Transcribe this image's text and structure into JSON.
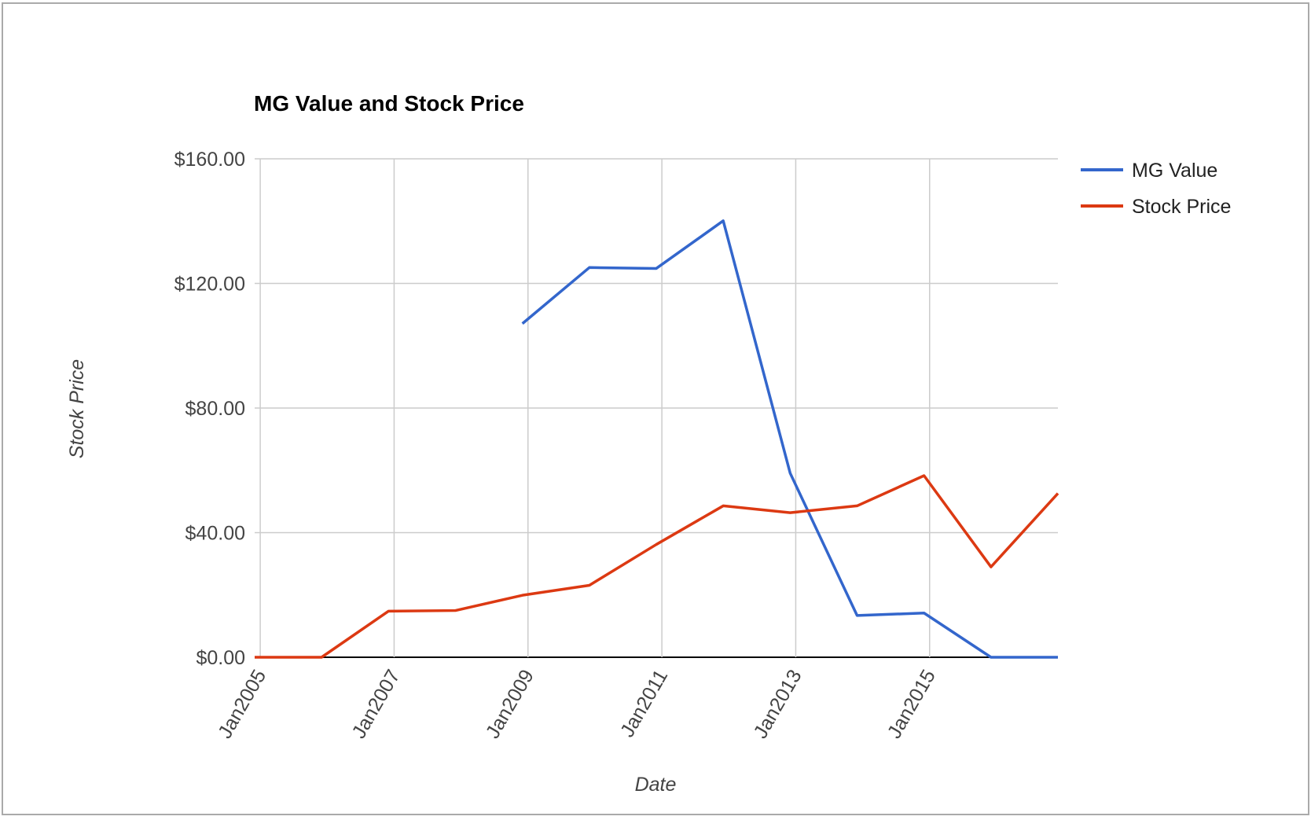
{
  "chart_data": {
    "type": "line",
    "title": "MG Value and Stock Price",
    "x_label": "Date",
    "y_label": "Stock Price",
    "x": [
      "2004-12",
      "2005-12",
      "2006-12",
      "2007-12",
      "2008-12",
      "2009-12",
      "2010-12",
      "2011-12",
      "2012-12",
      "2013-12",
      "2014-12",
      "2015-12",
      "2016-12"
    ],
    "series": [
      {
        "name": "MG Value",
        "color": "#3366cc",
        "values": [
          null,
          null,
          null,
          null,
          107.1,
          125.1,
          124.8,
          140.1,
          59.1,
          13.4,
          14.2,
          0,
          0
        ]
      },
      {
        "name": "Stock Price",
        "color": "#dc3912",
        "values": [
          0,
          0,
          14.8,
          15,
          19.9,
          23.1,
          36.2,
          48.6,
          46.4,
          48.6,
          58.3,
          29,
          52.6
        ]
      }
    ],
    "xlim": [
      "2004-12",
      "2016-12"
    ],
    "xticks": [
      {
        "value": "2005-01",
        "label": "Jan2005"
      },
      {
        "value": "2007-01",
        "label": "Jan2007"
      },
      {
        "value": "2009-01",
        "label": "Jan2009"
      },
      {
        "value": "2011-01",
        "label": "Jan2011"
      },
      {
        "value": "2013-01",
        "label": "Jan2013"
      },
      {
        "value": "2015-01",
        "label": "Jan2015"
      }
    ],
    "ylim": [
      0,
      160
    ],
    "yticks": [
      {
        "value": 0,
        "label": "$0.00"
      },
      {
        "value": 40,
        "label": "$40.00"
      },
      {
        "value": 80,
        "label": "$80.00"
      },
      {
        "value": 120,
        "label": "$120.00"
      },
      {
        "value": 160,
        "label": "$160.00"
      }
    ],
    "grid": true,
    "legend": "right"
  }
}
